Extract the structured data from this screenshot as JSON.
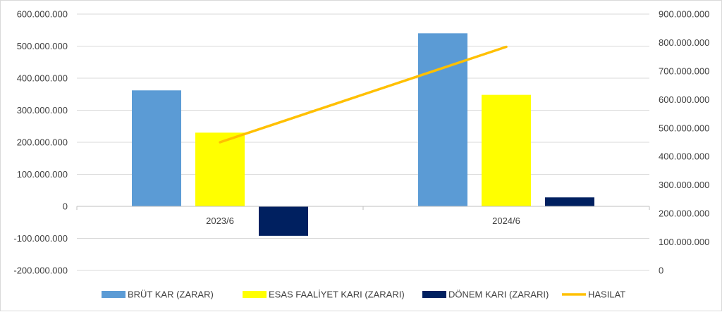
{
  "chart_data": {
    "type": "bar",
    "categories": [
      "2023/6",
      "2024/6"
    ],
    "series": [
      {
        "name": "BRÜT KAR (ZARAR)",
        "axis": "left",
        "kind": "bar",
        "color": "#5b9bd5",
        "values": [
          362000000,
          540000000
        ]
      },
      {
        "name": "ESAS FAALİYET KARI (ZARARI)",
        "axis": "left",
        "kind": "bar",
        "color": "#ffff00",
        "values": [
          230000000,
          348000000
        ]
      },
      {
        "name": "DÖNEM KARI (ZARARI)",
        "axis": "left",
        "kind": "bar",
        "color": "#002060",
        "values": [
          -92000000,
          28000000
        ]
      },
      {
        "name": "HASILAT",
        "axis": "right",
        "kind": "line",
        "color": "#ffc000",
        "values": [
          450000000,
          785000000
        ]
      }
    ],
    "left_axis": {
      "ylim": [
        -200000000,
        600000000
      ],
      "ticks": [
        600000000,
        500000000,
        400000000,
        300000000,
        200000000,
        100000000,
        0,
        -100000000,
        -200000000
      ],
      "tick_labels": [
        "600.000.000",
        "500.000.000",
        "400.000.000",
        "300.000.000",
        "200.000.000",
        "100.000.000",
        "0",
        "-100.000.000",
        "-200.000.000"
      ]
    },
    "right_axis": {
      "ylim": [
        0,
        900000000
      ],
      "ticks": [
        900000000,
        800000000,
        700000000,
        600000000,
        500000000,
        400000000,
        300000000,
        200000000,
        100000000,
        0
      ],
      "tick_labels": [
        "900.000.000",
        "800.000.000",
        "700.000.000",
        "600.000.000",
        "500.000.000",
        "400.000.000",
        "300.000.000",
        "200.000.000",
        "100.000.000",
        "0"
      ]
    },
    "grid": true,
    "legend_position": "bottom"
  }
}
